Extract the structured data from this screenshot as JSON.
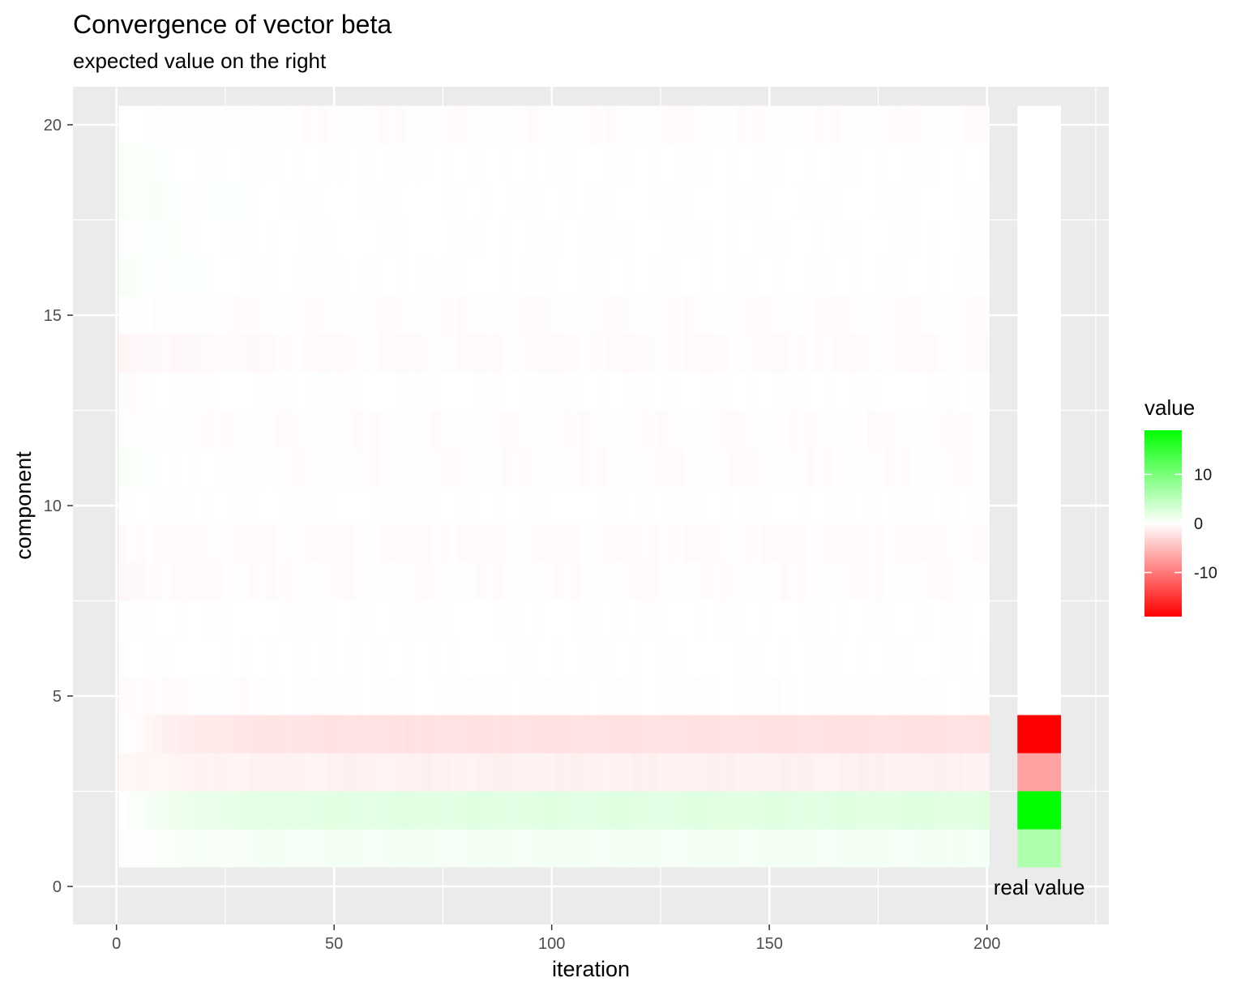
{
  "chart_data": {
    "type": "heatmap",
    "title": "Convergence of vector beta",
    "subtitle": "expected value on the right",
    "xlabel": "iteration",
    "ylabel": "component",
    "x_ticks": [
      0,
      50,
      100,
      150,
      200
    ],
    "y_ticks": [
      0,
      5,
      10,
      15,
      20
    ],
    "xlim": [
      -10,
      228
    ],
    "ylim": [
      -1,
      21
    ],
    "iterations": [
      1,
      200
    ],
    "components": [
      1,
      20
    ],
    "grid": true,
    "legend_position": "right",
    "legend": {
      "title": "value",
      "breaks": [
        10,
        0,
        -10
      ],
      "range": [
        -19,
        19
      ],
      "colors": {
        "high": "#00ff00",
        "mid": "#ffffff",
        "low": "#ff0000"
      }
    },
    "annotation": "real value",
    "real_value": {
      "x": 212,
      "values": [
        6,
        19,
        -7,
        -19,
        0,
        0,
        0,
        0,
        0,
        0,
        0,
        0,
        0,
        0,
        0,
        0,
        0,
        0,
        0,
        0
      ]
    },
    "series_profiles": [
      {
        "component": 1,
        "start": 0,
        "end": 0.8
      },
      {
        "component": 2,
        "start": 0,
        "end": 2.2
      },
      {
        "component": 3,
        "start": -0.5,
        "end": -1.0
      },
      {
        "component": 4,
        "start": 0,
        "end": -2.2
      },
      {
        "component": 5,
        "start": -0.4,
        "end": -0.1
      },
      {
        "component": 6,
        "start": 0,
        "end": 0
      },
      {
        "component": 7,
        "start": 0,
        "end": 0
      },
      {
        "component": 8,
        "start": -0.5,
        "end": -0.2
      },
      {
        "component": 9,
        "start": -0.3,
        "end": -0.3
      },
      {
        "component": 10,
        "start": 0,
        "end": 0
      },
      {
        "component": 11,
        "start": 0.5,
        "end": -0.2
      },
      {
        "component": 12,
        "start": -0.1,
        "end": -0.2
      },
      {
        "component": 13,
        "start": -0.2,
        "end": 0
      },
      {
        "component": 14,
        "start": -0.7,
        "end": -0.3
      },
      {
        "component": 15,
        "start": 0,
        "end": -0.2
      },
      {
        "component": 16,
        "start": 0.5,
        "end": 0
      },
      {
        "component": 17,
        "start": 0.3,
        "end": 0.1
      },
      {
        "component": 18,
        "start": 0.5,
        "end": 0.1
      },
      {
        "component": 19,
        "start": 0.4,
        "end": 0
      },
      {
        "component": 20,
        "start": 0,
        "end": -0.2
      }
    ]
  }
}
